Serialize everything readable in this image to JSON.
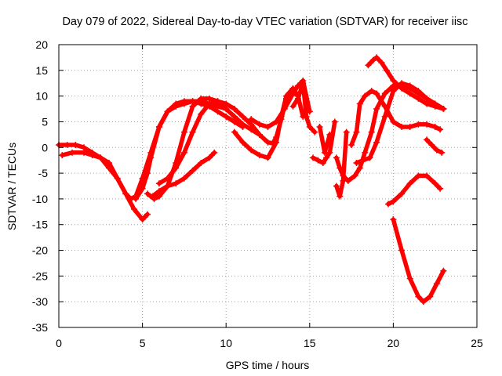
{
  "chart_data": {
    "type": "scatter",
    "title": "Day 079 of 2022, Sidereal Day-to-day VTEC variation (SDTVAR) for receiver iisc",
    "xlabel": "GPS time / hours",
    "ylabel": "SDTVAR / TECUs",
    "xlim": [
      0,
      25
    ],
    "ylim": [
      -35,
      20
    ],
    "xticks": [
      0,
      5,
      10,
      15,
      20,
      25
    ],
    "yticks": [
      -35,
      -30,
      -25,
      -20,
      -15,
      -10,
      -5,
      0,
      5,
      10,
      15,
      20
    ],
    "xtick_labels": [
      "0",
      "5",
      "10",
      "15",
      "20",
      "25"
    ],
    "ytick_labels": [
      "-35",
      "-30",
      "-25",
      "-20",
      "-15",
      "-10",
      "-5",
      "0",
      "5",
      "10",
      "15",
      "20"
    ],
    "grid": true,
    "marker": "+",
    "color": "#ff0000",
    "series": [
      {
        "x": [
          0.0,
          0.5,
          1.0,
          1.5,
          2.0,
          2.5,
          3.0,
          3.5,
          4.0,
          4.5,
          5.0,
          5.3
        ],
        "y": [
          0.5,
          0.5,
          0.5,
          0.0,
          -1.0,
          -2.0,
          -4.0,
          -6.0,
          -9.0,
          -12.0,
          -14.0,
          -13.0
        ]
      },
      {
        "x": [
          0.2,
          0.8,
          1.5,
          2.0,
          2.5,
          3.0,
          3.5,
          4.0,
          4.3,
          4.6,
          5.0,
          5.5,
          6.0,
          6.5,
          7.0,
          7.5,
          8.0,
          8.5,
          9.0,
          9.5,
          10.0
        ],
        "y": [
          -1.5,
          -1.0,
          -1.0,
          -1.5,
          -2.0,
          -3.0,
          -6.0,
          -9.0,
          -10.0,
          -9.5,
          -6.0,
          -1.0,
          4.0,
          7.0,
          8.0,
          8.5,
          9.0,
          9.0,
          8.5,
          8.0,
          7.5
        ]
      },
      {
        "x": [
          4.6,
          5.0,
          5.3,
          5.5,
          6.0,
          6.5,
          7.0,
          7.5,
          8.0,
          8.5,
          9.0,
          9.5,
          10.0,
          10.5,
          11.0
        ],
        "y": [
          -10.0,
          -8.0,
          -5.0,
          -2.0,
          4.0,
          7.0,
          8.5,
          9.0,
          9.0,
          8.5,
          8.0,
          7.0,
          6.0,
          5.0,
          4.0
        ]
      },
      {
        "x": [
          5.3,
          5.7,
          6.0,
          6.5,
          7.0,
          7.5,
          8.0,
          8.5,
          9.0,
          9.5,
          10.0,
          10.5,
          11.0,
          11.5,
          12.0
        ],
        "y": [
          -9.0,
          -10.0,
          -9.5,
          -7.5,
          -3.0,
          3.0,
          8.0,
          9.5,
          9.5,
          9.0,
          7.5,
          6.0,
          4.5,
          3.5,
          2.5
        ]
      },
      {
        "x": [
          5.6,
          6.0,
          6.5,
          7.0,
          7.5,
          8.0,
          8.5,
          9.0,
          9.3
        ],
        "y": [
          -9.5,
          -8.5,
          -7.5,
          -7.0,
          -6.0,
          -4.5,
          -3.0,
          -2.0,
          -1.0
        ]
      },
      {
        "x": [
          6.0,
          6.5,
          7.0,
          7.5,
          8.0,
          8.5,
          9.0,
          9.5,
          10.0,
          10.5,
          11.0,
          11.5,
          12.0,
          12.5,
          12.8,
          13.0,
          13.3,
          13.6,
          14.0,
          14.3
        ],
        "y": [
          -7.0,
          -6.0,
          -4.0,
          -1.0,
          3.0,
          6.5,
          8.5,
          9.0,
          8.5,
          7.5,
          6.0,
          4.5,
          2.5,
          1.0,
          0.8,
          2.0,
          5.5,
          9.5,
          11.0,
          10.0
        ]
      },
      {
        "x": [
          10.5,
          11.0,
          11.5,
          12.0,
          12.5,
          13.0,
          13.3,
          13.6,
          14.0,
          14.3,
          14.6
        ],
        "y": [
          3.0,
          1.0,
          -0.5,
          -1.5,
          -2.0,
          1.0,
          6.0,
          10.0,
          11.5,
          10.0,
          6.0
        ]
      },
      {
        "x": [
          11.5,
          12.0,
          12.5,
          13.0,
          13.5,
          14.0,
          14.3,
          14.6,
          15.0
        ],
        "y": [
          5.5,
          4.5,
          4.0,
          5.0,
          7.5,
          10.5,
          12.0,
          13.0,
          7.0
        ]
      },
      {
        "x": [
          14.0,
          14.3,
          14.6,
          14.8,
          15.0,
          15.3
        ],
        "y": [
          8.0,
          9.5,
          12.5,
          6.0,
          4.0,
          3.0
        ]
      },
      {
        "x": [
          15.2,
          15.5,
          15.8,
          16.0,
          16.2,
          16.5
        ],
        "y": [
          -2.0,
          -2.5,
          -3.0,
          -2.0,
          -1.0,
          5.0
        ]
      },
      {
        "x": [
          15.6,
          15.9,
          16.2
        ],
        "y": [
          4.0,
          -1.0,
          2.5
        ]
      },
      {
        "x": [
          16.6,
          16.8,
          17.0,
          17.3,
          17.7,
          18.0,
          18.3,
          18.7,
          19.0,
          19.5,
          20.0,
          20.5,
          21.0,
          21.5,
          22.0,
          22.5,
          23.0
        ],
        "y": [
          -2.0,
          -4.0,
          -5.5,
          -6.5,
          -5.5,
          -4.0,
          -1.0,
          3.0,
          7.5,
          10.5,
          12.0,
          12.0,
          11.5,
          10.5,
          9.5,
          8.5,
          7.5
        ]
      },
      {
        "x": [
          16.6,
          16.8,
          17.0,
          17.2
        ],
        "y": [
          -7.5,
          -9.5,
          -6.5,
          3.0
        ]
      },
      {
        "x": [
          17.5,
          17.8,
          18.0,
          18.3,
          18.7,
          19.0,
          19.5,
          20.0,
          20.5,
          21.0,
          21.5,
          22.0,
          22.5,
          22.8
        ],
        "y": [
          0.5,
          3.0,
          8.5,
          10.0,
          11.0,
          10.5,
          8.0,
          5.0,
          4.0,
          4.0,
          4.5,
          4.5,
          4.0,
          3.5
        ]
      },
      {
        "x": [
          17.8,
          18.2,
          18.6,
          19.0,
          19.5,
          20.0,
          20.5,
          21.0,
          21.5,
          22.0,
          22.5,
          23.0
        ],
        "y": [
          -3.0,
          -2.5,
          -2.0,
          1.0,
          6.0,
          11.0,
          12.5,
          12.0,
          11.0,
          9.5,
          8.5,
          7.5
        ]
      },
      {
        "x": [
          18.5,
          18.8,
          19.0,
          19.3,
          19.6,
          20.0,
          20.5,
          21.0,
          21.5,
          22.0,
          22.5,
          23.0
        ],
        "y": [
          16.0,
          17.0,
          17.5,
          16.5,
          15.0,
          13.0,
          11.5,
          10.5,
          9.5,
          8.5,
          8.0,
          7.5
        ]
      },
      {
        "x": [
          19.7,
          20.0,
          20.5,
          21.0,
          21.5,
          22.0,
          22.5,
          22.8
        ],
        "y": [
          -11.0,
          -10.5,
          -9.0,
          -7.0,
          -5.5,
          -5.5,
          -7.0,
          -8.0
        ]
      },
      {
        "x": [
          20.0,
          20.5,
          21.0,
          21.5,
          21.8,
          22.2,
          22.6,
          23.0
        ],
        "y": [
          -14.0,
          -20.0,
          -25.5,
          -29.0,
          -30.0,
          -29.0,
          -26.5,
          -24.0
        ]
      },
      {
        "x": [
          22.0,
          22.3,
          22.6,
          22.9
        ],
        "y": [
          1.5,
          0.5,
          -0.5,
          -1.0
        ]
      }
    ]
  }
}
